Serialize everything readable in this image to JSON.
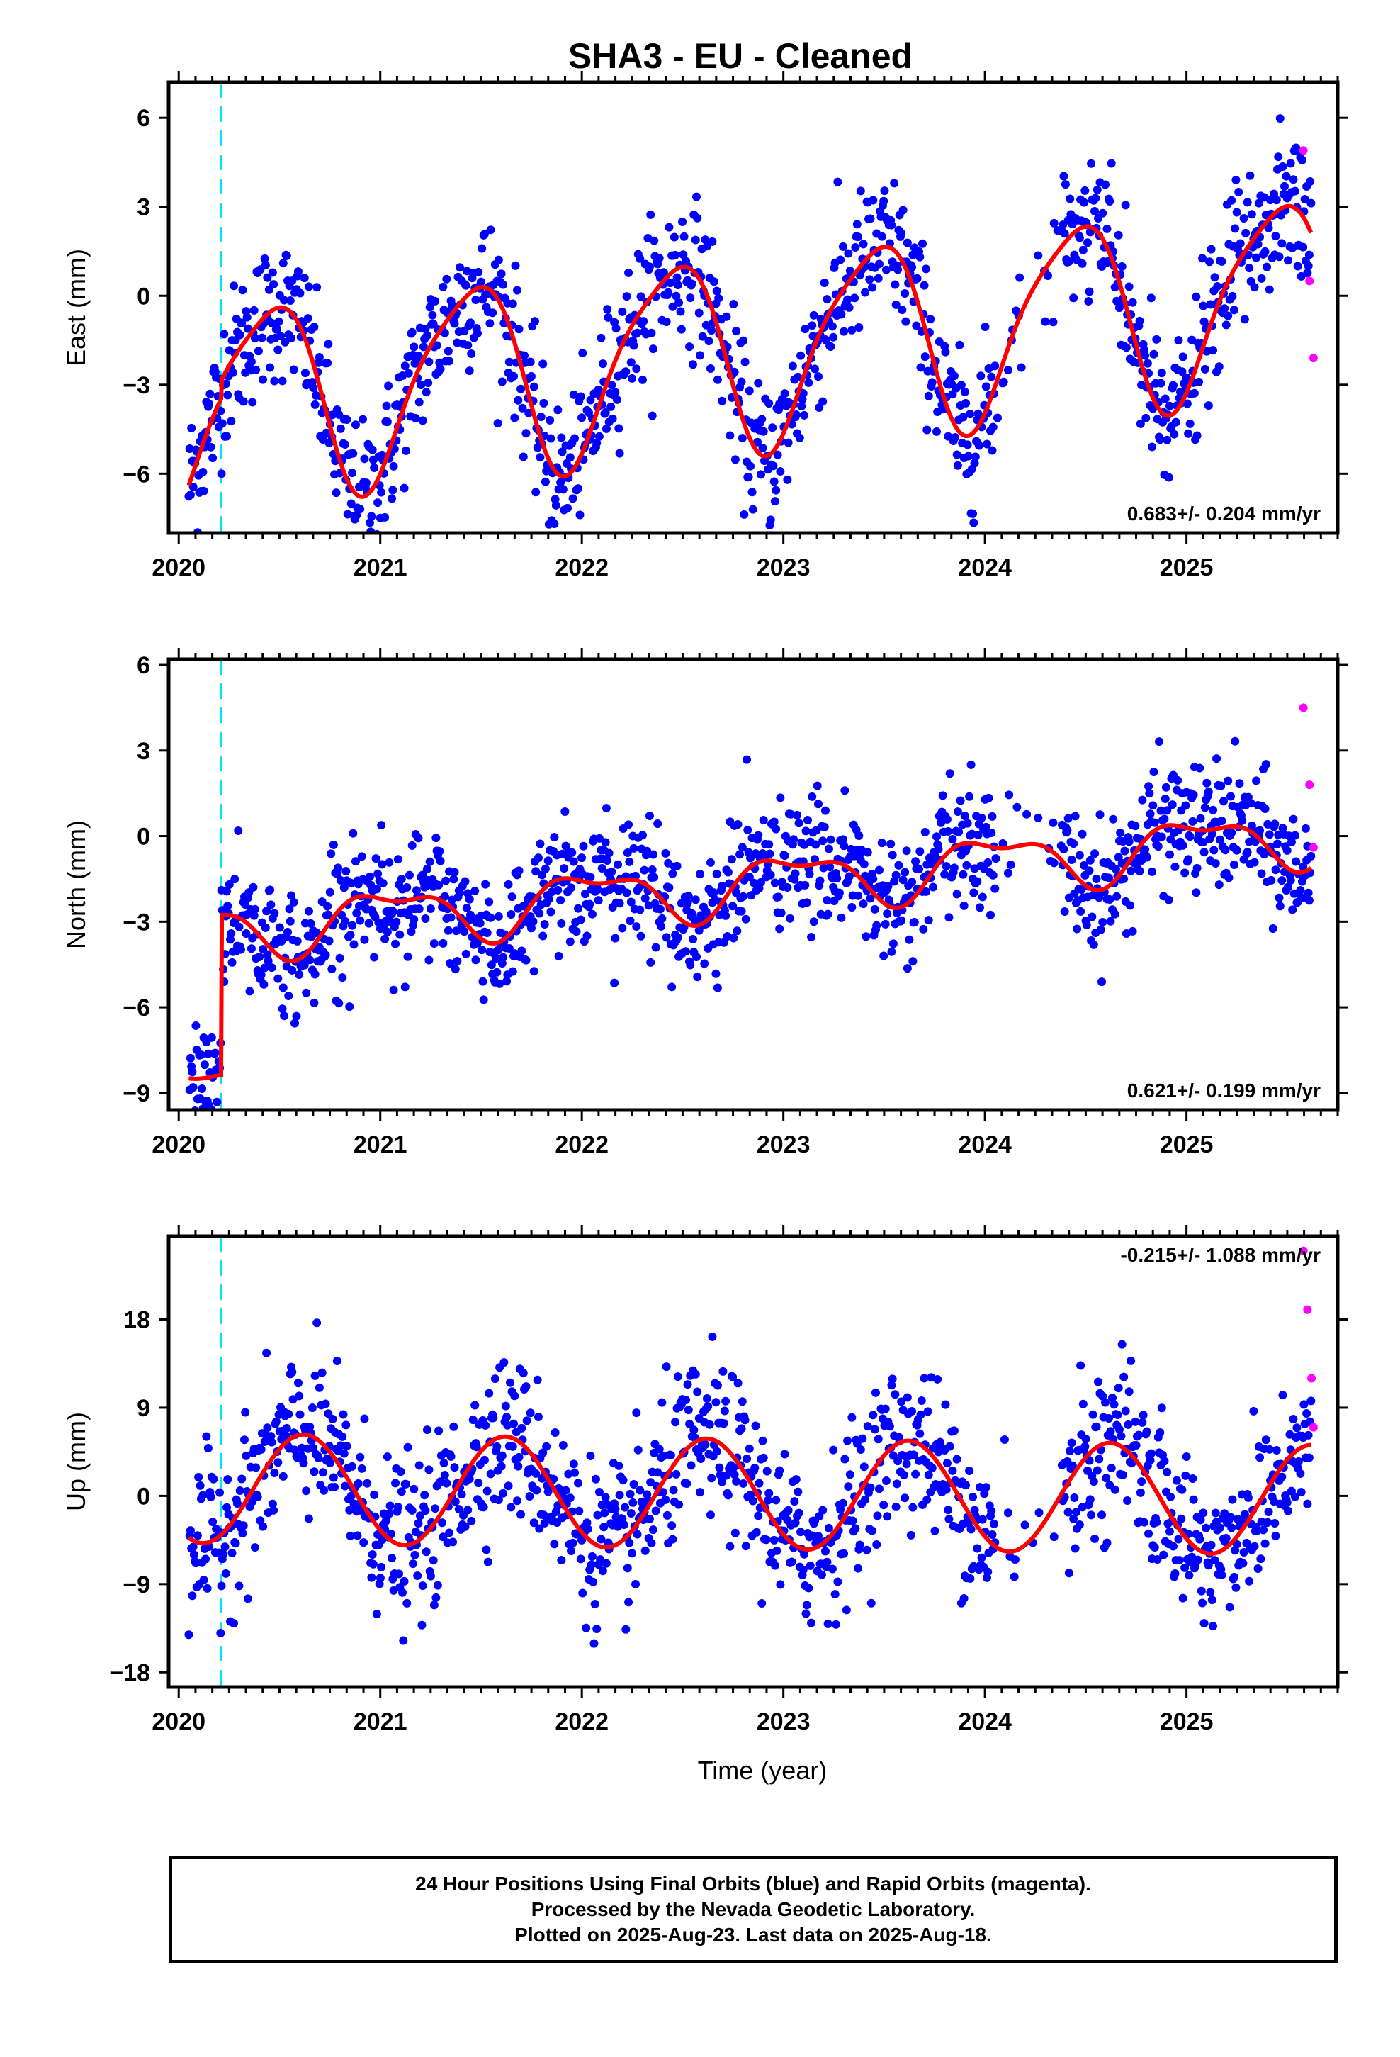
{
  "title": "SHA3  - EU - Cleaned",
  "x_axis_title": "Time (year)",
  "caption": [
    "24 Hour Positions Using Final Orbits (blue) and Rapid Orbits (magenta).",
    "Processed by the Nevada Geodetic Laboratory.",
    "Plotted on 2025-Aug-23. Last data on 2025-Aug-18."
  ],
  "colors": {
    "final_orbits": "#0000ff",
    "rapid_orbits": "#ff00ff",
    "model_fit": "#ff0000",
    "event_line": "#00e5ff"
  },
  "chart_data": [
    {
      "type": "scatter",
      "name": "East",
      "ylabel": "East (mm)",
      "xlim": [
        2019.95,
        2025.75
      ],
      "ylim": [
        -8,
        7.2
      ],
      "yticks": [
        -6,
        -3,
        0,
        3,
        6
      ],
      "xticks": [
        2020,
        2021,
        2022,
        2023,
        2024,
        2025
      ],
      "rate_label": "0.683+/- 0.204 mm/yr",
      "event_line_x": 2020.21,
      "model": {
        "start": 2020.05,
        "end": 2025.62,
        "trend": 0.683,
        "amp_annual": 3.2,
        "phase_annual": 0.44,
        "amp_semiannual": 0.6,
        "phase_semiannual": 0.5,
        "pre_offset": -0.6,
        "base": -1.8
      },
      "scatter_noise": 1.2,
      "gaps": [
        [
          2024.05,
          2024.38
        ]
      ],
      "rapid_x": [
        2025.58,
        2025.61,
        2025.63
      ],
      "rapid_y": [
        4.9,
        0.5,
        -2.1
      ]
    },
    {
      "type": "scatter",
      "name": "North",
      "ylabel": "North (mm)",
      "xlim": [
        2019.95,
        2025.75
      ],
      "ylim": [
        -9.6,
        6.2
      ],
      "yticks": [
        -9,
        -6,
        -3,
        0,
        3,
        6
      ],
      "xticks": [
        2020,
        2021,
        2022,
        2023,
        2024,
        2025
      ],
      "rate_label": "0.621+/- 0.199 mm/yr",
      "event_line_x": 2020.21,
      "model": {
        "start": 2020.05,
        "end": 2025.62,
        "trend": 0.621,
        "amp_annual": 0.9,
        "phase_annual": 0.05,
        "amp_semiannual": 0.4,
        "phase_semiannual": 0.2,
        "pre_offset": -5.6,
        "base": -1.7
      },
      "scatter_noise": 1.1,
      "gaps": [
        [
          2024.05,
          2024.38
        ]
      ],
      "rapid_x": [
        2025.58,
        2025.61,
        2025.63
      ],
      "rapid_y": [
        4.5,
        1.8,
        -0.4
      ]
    },
    {
      "type": "scatter",
      "name": "Up",
      "ylabel": "Up (mm)",
      "xlim": [
        2019.95,
        2025.75
      ],
      "ylim": [
        -19.5,
        26.5
      ],
      "yticks": [
        -18,
        -9,
        0,
        9,
        18
      ],
      "xticks": [
        2020,
        2021,
        2022,
        2023,
        2024,
        2025
      ],
      "rate_label": "-0.215+/- 1.088 mm/yr",
      "event_line_x": 2020.21,
      "model": {
        "start": 2020.05,
        "end": 2025.62,
        "trend": -0.215,
        "amp_annual": 5.6,
        "phase_annual": 0.62,
        "amp_semiannual": 0.0,
        "phase_semiannual": 0.0,
        "pre_offset": 0.0,
        "base": 0.2
      },
      "scatter_noise": 4.0,
      "gaps": [
        [
          2024.05,
          2024.38
        ]
      ],
      "rapid_x": [
        2025.58,
        2025.6,
        2025.62,
        2025.63
      ],
      "rapid_y": [
        25.0,
        19.0,
        12.0,
        7.0
      ]
    }
  ]
}
